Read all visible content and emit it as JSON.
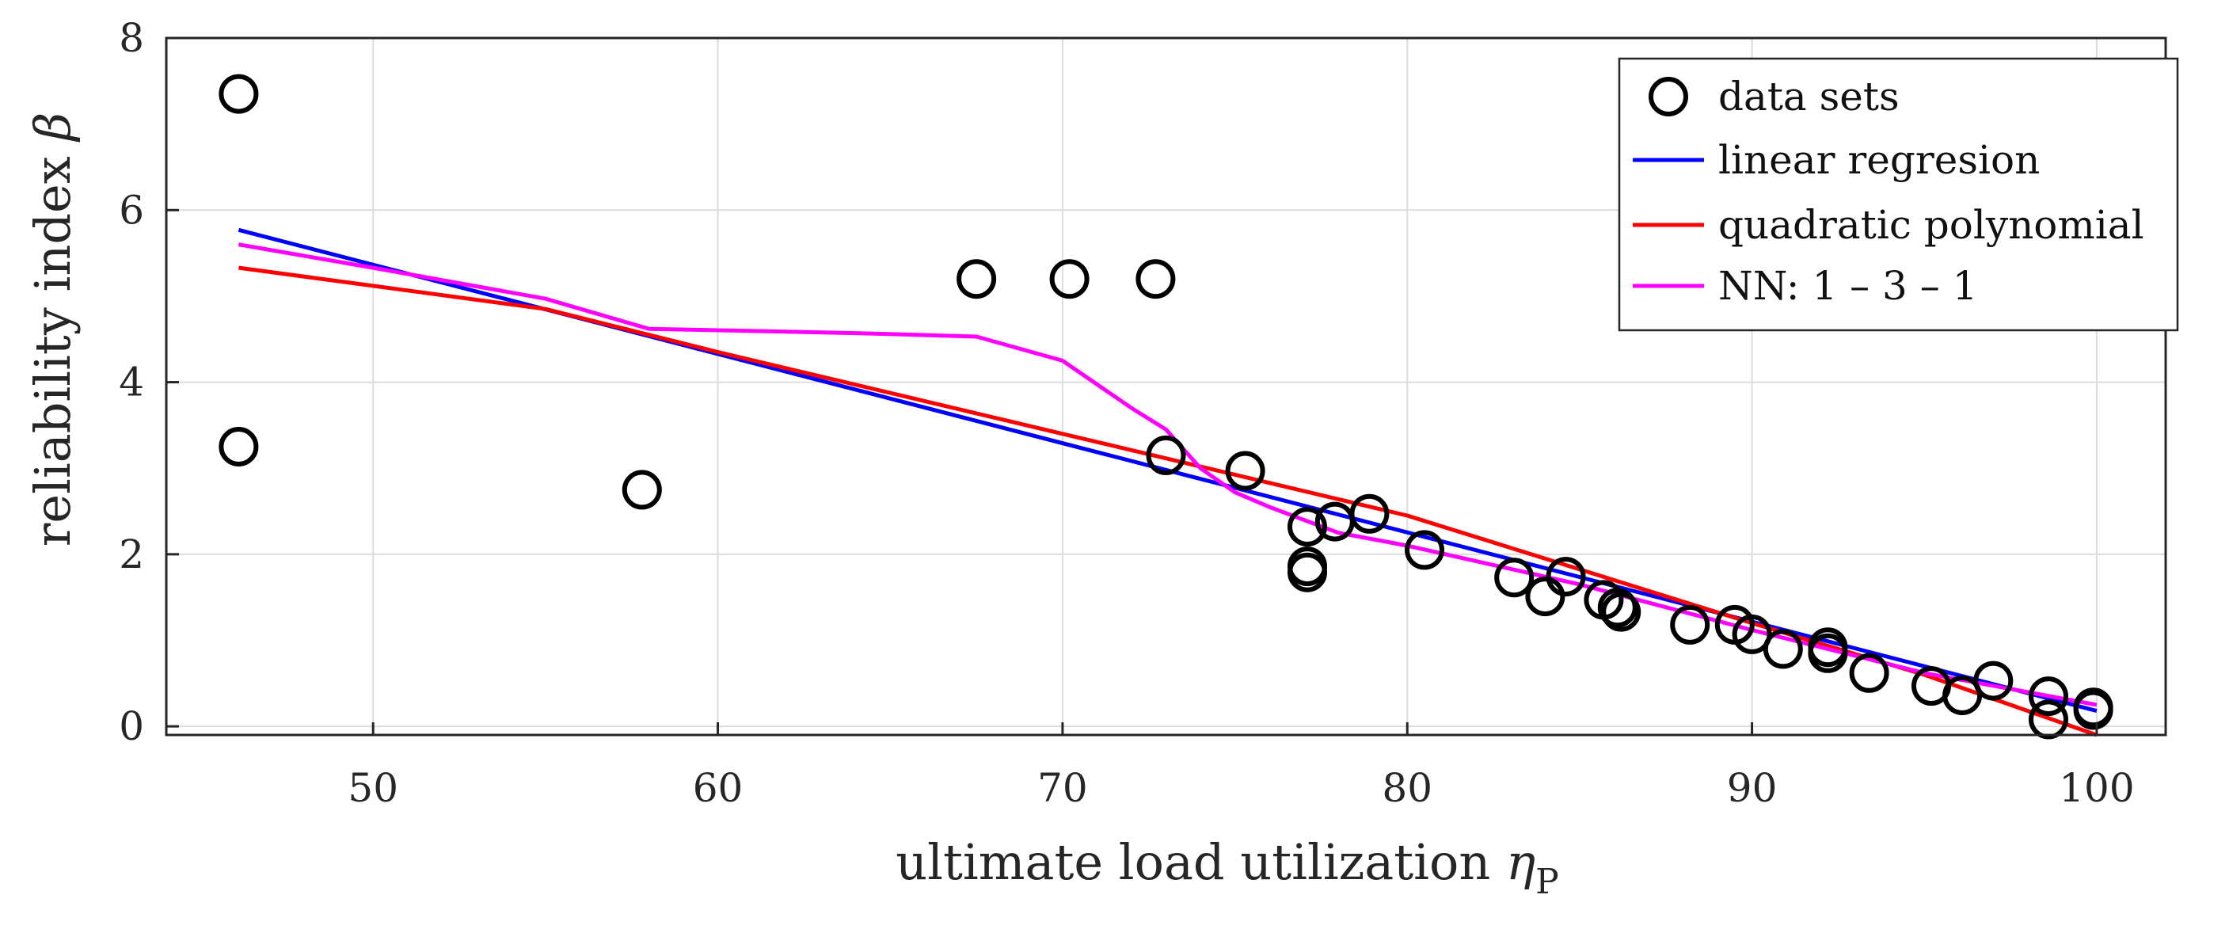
{
  "chart_data": {
    "type": "scatter",
    "title": "",
    "xlabel": "ultimate load utilization",
    "xlabel_symbol": "η",
    "xlabel_subscript": "P",
    "ylabel": "reliability index",
    "ylabel_symbol": "β",
    "xlim": [
      44,
      102
    ],
    "ylim": [
      -0.1,
      8
    ],
    "xticks": [
      "50",
      "60",
      "70",
      "80",
      "90",
      "100"
    ],
    "yticks": [
      "0",
      "2",
      "4",
      "6",
      "8"
    ],
    "grid": true,
    "legend_position": "top-right",
    "colors": {
      "data": "#000000",
      "linear": "#0000ff",
      "quadratic": "#ff0000",
      "nn": "#ff00ff"
    },
    "series": [
      {
        "name": "data sets",
        "kind": "markers",
        "points": [
          [
            46.1,
            7.35
          ],
          [
            46.1,
            3.25
          ],
          [
            57.8,
            2.75
          ],
          [
            67.5,
            5.2
          ],
          [
            70.2,
            5.2
          ],
          [
            72.7,
            5.2
          ],
          [
            73.0,
            3.15
          ],
          [
            75.3,
            2.97
          ],
          [
            77.1,
            2.32
          ],
          [
            77.1,
            1.86
          ],
          [
            77.1,
            1.79
          ],
          [
            77.9,
            2.38
          ],
          [
            78.9,
            2.47
          ],
          [
            80.5,
            2.05
          ],
          [
            83.1,
            1.73
          ],
          [
            84.0,
            1.51
          ],
          [
            84.6,
            1.74
          ],
          [
            85.7,
            1.47
          ],
          [
            86.1,
            1.38
          ],
          [
            86.2,
            1.33
          ],
          [
            88.2,
            1.18
          ],
          [
            89.5,
            1.18
          ],
          [
            90.0,
            1.07
          ],
          [
            90.9,
            0.9
          ],
          [
            92.2,
            0.92
          ],
          [
            92.2,
            0.85
          ],
          [
            93.4,
            0.62
          ],
          [
            95.2,
            0.47
          ],
          [
            96.1,
            0.36
          ],
          [
            97.0,
            0.53
          ],
          [
            98.6,
            0.35
          ],
          [
            98.6,
            0.08
          ],
          [
            99.9,
            0.22
          ],
          [
            99.9,
            0.19
          ]
        ]
      },
      {
        "name": "linear regresion",
        "kind": "line",
        "points": [
          [
            46.1,
            5.77
          ],
          [
            100,
            0.18
          ]
        ]
      },
      {
        "name": "quadratic polynomial",
        "kind": "line",
        "points": [
          [
            46.1,
            5.33
          ],
          [
            55,
            4.85
          ],
          [
            60,
            4.35
          ],
          [
            70,
            3.4
          ],
          [
            80,
            2.45
          ],
          [
            90,
            1.2
          ],
          [
            95,
            0.6
          ],
          [
            100,
            -0.1
          ]
        ]
      },
      {
        "name": "NN: 1 – 3 – 1",
        "kind": "line",
        "points": [
          [
            46.1,
            5.6
          ],
          [
            50,
            5.33
          ],
          [
            55,
            4.97
          ],
          [
            58,
            4.62
          ],
          [
            64,
            4.57
          ],
          [
            67.5,
            4.53
          ],
          [
            70,
            4.25
          ],
          [
            72,
            3.7
          ],
          [
            73,
            3.45
          ],
          [
            74,
            3.0
          ],
          [
            75,
            2.72
          ],
          [
            76,
            2.55
          ],
          [
            78,
            2.25
          ],
          [
            80,
            2.1
          ],
          [
            85,
            1.65
          ],
          [
            90,
            1.12
          ],
          [
            95,
            0.62
          ],
          [
            100,
            0.25
          ]
        ]
      }
    ]
  }
}
